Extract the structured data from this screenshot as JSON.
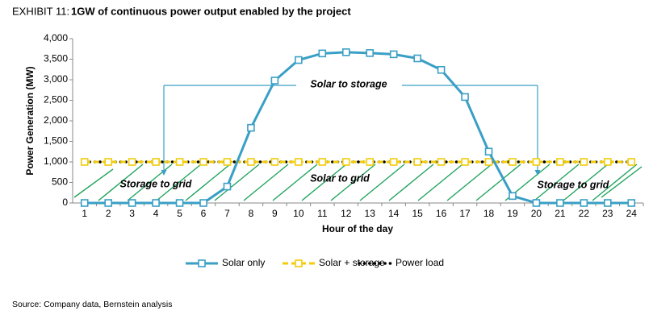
{
  "chart_data": {
    "type": "line",
    "exhibit": "EXHIBIT 11:",
    "title": "1GW of continuous power output enabled by the project",
    "x_label": "Hour of the day",
    "y_label": "Power Generation (MW)",
    "categories": [
      1,
      2,
      3,
      4,
      5,
      6,
      7,
      8,
      9,
      10,
      11,
      12,
      13,
      14,
      15,
      16,
      17,
      18,
      19,
      20,
      21,
      22,
      23,
      24
    ],
    "ylim": [
      0,
      4000
    ],
    "yticks": [
      0,
      500,
      {
        "value": 1000,
        "label": "1,000"
      },
      {
        "value": 1500,
        "label": "1,500"
      },
      {
        "value": 2000,
        "label": "2,000"
      },
      {
        "value": 2500,
        "label": "2,500"
      },
      {
        "value": 3000,
        "label": "3,000"
      },
      {
        "value": 3500,
        "label": "3,500"
      },
      {
        "value": 4000,
        "label": "4,000"
      }
    ],
    "grid": false,
    "legend": "bottom",
    "series": [
      {
        "name": "Solar only",
        "color": "#3a9fc5",
        "line_style": "solid",
        "marker": "square",
        "values": [
          0,
          0,
          0,
          0,
          0,
          0,
          400,
          1830,
          2980,
          3480,
          3640,
          3670,
          3650,
          3620,
          3520,
          3240,
          2580,
          1250,
          170,
          0,
          0,
          0,
          0,
          0
        ]
      },
      {
        "name": "Solar + storage",
        "color": "#f2cc0c",
        "line_style": "dashed",
        "marker": "square",
        "values": [
          1000,
          1000,
          1000,
          1000,
          1000,
          1000,
          1000,
          1000,
          1000,
          1000,
          1000,
          1000,
          1000,
          1000,
          1000,
          1000,
          1000,
          1000,
          1000,
          1000,
          1000,
          1000,
          1000,
          1000
        ]
      },
      {
        "name": "Power load",
        "color": "#000000",
        "line_style": "dotted",
        "marker": "none",
        "values": [
          1000,
          1000,
          1000,
          1000,
          1000,
          1000,
          1000,
          1000,
          1000,
          1000,
          1000,
          1000,
          1000,
          1000,
          1000,
          1000,
          1000,
          1000,
          1000,
          1000,
          1000,
          1000,
          1000,
          1000
        ]
      }
    ],
    "annotations": [
      "Solar to storage",
      "Storage to grid",
      "Solar to grid",
      "Storage to grid"
    ],
    "source": "Source: Company data, Bernstein analysis"
  }
}
